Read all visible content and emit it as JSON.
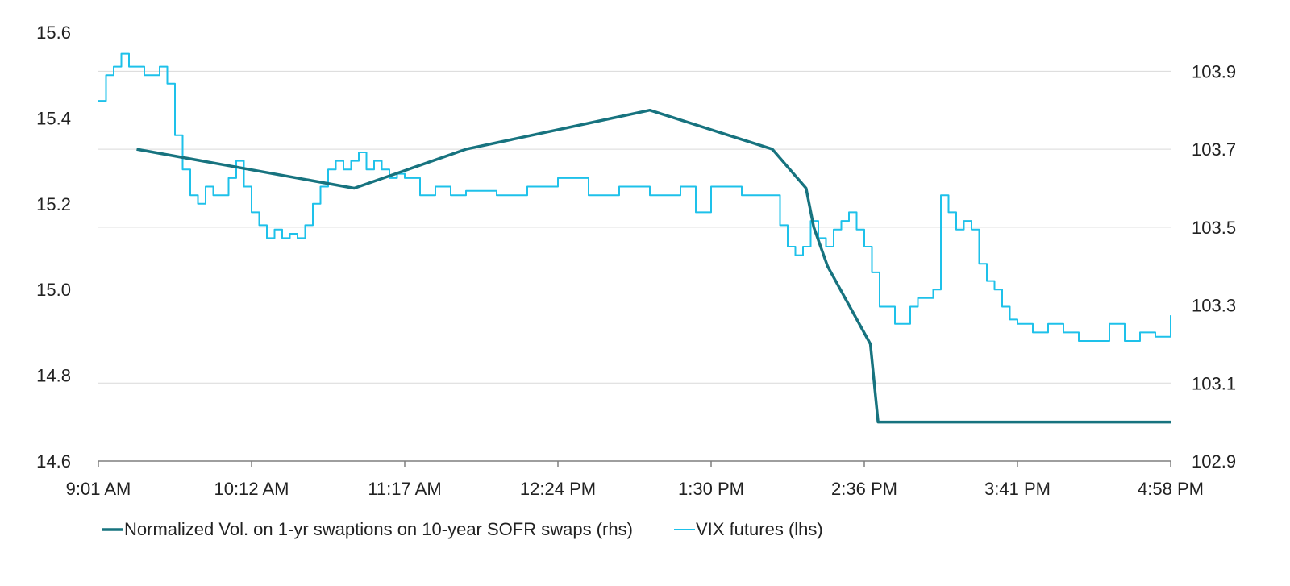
{
  "chart_data": {
    "type": "line",
    "title": "",
    "grid": true,
    "legend_position": "bottom",
    "x_tick_labels": [
      "9:01 AM",
      "10:12 AM",
      "11:17 AM",
      "12:24 PM",
      "1:30 PM",
      "2:36 PM",
      "3:41 PM",
      "4:58 PM"
    ],
    "y_left": {
      "ticks": [
        "14.6",
        "14.8",
        "15.0",
        "15.2",
        "15.4",
        "15.6"
      ],
      "range": [
        14.6,
        15.6
      ]
    },
    "y_right": {
      "ticks": [
        "102.9",
        "103.1",
        "103.3",
        "103.5",
        "103.7",
        "103.9"
      ],
      "range": [
        102.9,
        104.0
      ]
    },
    "series": [
      {
        "name": "Normalized Vol. on 1-yr swaptions on 10-year SOFR swaps (rhs)",
        "axis": "right",
        "color": "#17737f",
        "x_index": [
          0.25,
          1.67,
          2.4,
          3.6,
          4.4,
          4.62,
          4.67,
          4.76,
          5.04,
          5.09,
          7.0
        ],
        "values": [
          103.7,
          103.6,
          103.7,
          103.8,
          103.7,
          103.6,
          103.5,
          103.4,
          103.2,
          103.0,
          103.0
        ]
      },
      {
        "name": "VIX futures (lhs)",
        "axis": "left",
        "color": "#1ec1ea",
        "x_index": [
          0.0,
          0.05,
          0.1,
          0.15,
          0.2,
          0.25,
          0.3,
          0.35,
          0.4,
          0.45,
          0.5,
          0.55,
          0.6,
          0.65,
          0.7,
          0.75,
          0.8,
          0.85,
          0.9,
          0.95,
          1.0,
          1.05,
          1.1,
          1.15,
          1.2,
          1.25,
          1.3,
          1.35,
          1.4,
          1.45,
          1.5,
          1.55,
          1.6,
          1.65,
          1.7,
          1.75,
          1.8,
          1.85,
          1.9,
          1.95,
          2.0,
          2.1,
          2.2,
          2.3,
          2.4,
          2.6,
          2.8,
          3.0,
          3.2,
          3.4,
          3.6,
          3.8,
          3.9,
          4.0,
          4.2,
          4.4,
          4.45,
          4.5,
          4.55,
          4.6,
          4.65,
          4.7,
          4.75,
          4.8,
          4.85,
          4.9,
          4.95,
          5.0,
          5.05,
          5.1,
          5.2,
          5.3,
          5.35,
          5.4,
          5.45,
          5.5,
          5.55,
          5.6,
          5.65,
          5.7,
          5.75,
          5.8,
          5.85,
          5.9,
          5.95,
          6.0,
          6.1,
          6.2,
          6.3,
          6.4,
          6.5,
          6.6,
          6.7,
          6.8,
          6.9,
          7.0
        ],
        "values": [
          15.44,
          15.5,
          15.52,
          15.55,
          15.52,
          15.52,
          15.5,
          15.5,
          15.52,
          15.48,
          15.36,
          15.28,
          15.22,
          15.2,
          15.24,
          15.22,
          15.22,
          15.26,
          15.3,
          15.24,
          15.18,
          15.15,
          15.12,
          15.14,
          15.12,
          15.13,
          15.12,
          15.15,
          15.2,
          15.24,
          15.28,
          15.3,
          15.28,
          15.3,
          15.32,
          15.28,
          15.3,
          15.28,
          15.26,
          15.27,
          15.26,
          15.22,
          15.24,
          15.22,
          15.23,
          15.22,
          15.24,
          15.26,
          15.22,
          15.24,
          15.22,
          15.24,
          15.18,
          15.24,
          15.22,
          15.22,
          15.15,
          15.1,
          15.08,
          15.1,
          15.16,
          15.12,
          15.1,
          15.14,
          15.16,
          15.18,
          15.14,
          15.1,
          15.04,
          14.96,
          14.92,
          14.96,
          14.98,
          14.98,
          15.0,
          15.22,
          15.18,
          15.14,
          15.16,
          15.14,
          15.06,
          15.02,
          15.0,
          14.96,
          14.93,
          14.92,
          14.9,
          14.92,
          14.9,
          14.88,
          14.88,
          14.92,
          14.88,
          14.9,
          14.89,
          14.94
        ]
      }
    ]
  }
}
